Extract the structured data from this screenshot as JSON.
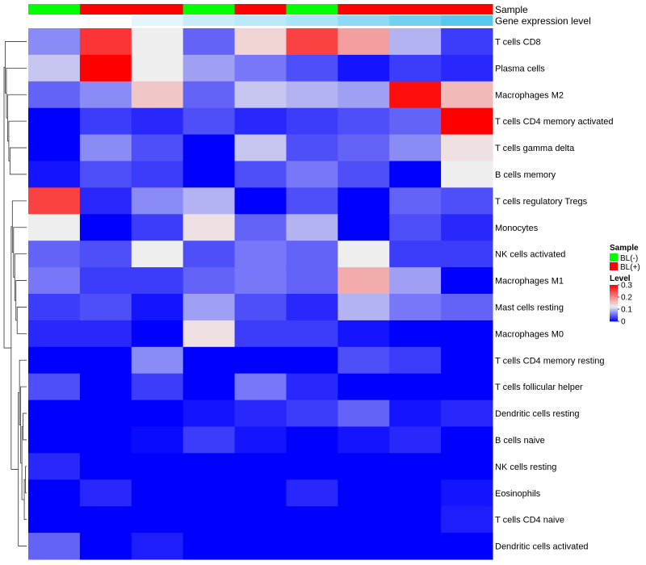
{
  "chart_data": {
    "type": "heatmap",
    "title": "",
    "annotation_tracks": [
      {
        "name": "Sample",
        "values": [
          "BL(-)",
          "BL(+)",
          "BL(+)",
          "BL(-)",
          "BL(+)",
          "BL(-)",
          "BL(+)",
          "BL(+)",
          "BL(+)"
        ]
      },
      {
        "name": "Gene expression level",
        "values": [
          0.0,
          0.0,
          0.02,
          0.04,
          0.05,
          0.06,
          0.08,
          0.1,
          0.12
        ]
      }
    ],
    "rows": [
      "T cells CD8",
      "Plasma cells",
      "Macrophages M2",
      "T cells CD4 memory activated",
      "T cells gamma delta",
      "B cells memory",
      "T cells regulatory  Tregs",
      "Monocytes",
      "NK cells activated",
      "Macrophages M1",
      "Mast cells resting",
      "Macrophages M0",
      "T cells CD4 memory resting",
      "T cells follicular helper",
      "Dendritic cells resting",
      "B cells naive",
      "NK cells resting",
      "Eosinophils",
      "T cells CD4 naive",
      "Dendritic cells activated"
    ],
    "values": [
      [
        0.07,
        0.26,
        0.12,
        0.05,
        0.14,
        0.25,
        0.18,
        0.09,
        0.03
      ],
      [
        0.1,
        0.3,
        0.12,
        0.08,
        0.06,
        0.04,
        0.01,
        0.03,
        0.02
      ],
      [
        0.05,
        0.07,
        0.15,
        0.05,
        0.1,
        0.09,
        0.08,
        0.29,
        0.16
      ],
      [
        0.0,
        0.03,
        0.02,
        0.04,
        0.02,
        0.03,
        0.04,
        0.05,
        0.3
      ],
      [
        0.0,
        0.07,
        0.04,
        0.0,
        0.1,
        0.04,
        0.05,
        0.07,
        0.13
      ],
      [
        0.01,
        0.04,
        0.03,
        0.0,
        0.04,
        0.06,
        0.04,
        0.0,
        0.12
      ],
      [
        0.25,
        0.02,
        0.07,
        0.09,
        0.0,
        0.04,
        0.0,
        0.05,
        0.04
      ],
      [
        0.12,
        0.0,
        0.03,
        0.13,
        0.05,
        0.09,
        0.0,
        0.04,
        0.02
      ],
      [
        0.05,
        0.04,
        0.12,
        0.04,
        0.06,
        0.05,
        0.12,
        0.03,
        0.03
      ],
      [
        0.06,
        0.03,
        0.03,
        0.05,
        0.06,
        0.05,
        0.17,
        0.08,
        0.0
      ],
      [
        0.03,
        0.04,
        0.01,
        0.08,
        0.04,
        0.02,
        0.09,
        0.06,
        0.05
      ],
      [
        0.02,
        0.02,
        0.0,
        0.13,
        0.03,
        0.03,
        0.01,
        0.0,
        0.0
      ],
      [
        0.0,
        0.0,
        0.07,
        0.0,
        0.0,
        0.0,
        0.04,
        0.03,
        0.0
      ],
      [
        0.04,
        0.0,
        0.03,
        0.0,
        0.06,
        0.02,
        0.0,
        0.0,
        0.0
      ],
      [
        0.0,
        0.0,
        0.0,
        0.01,
        0.02,
        0.03,
        0.05,
        0.01,
        0.02
      ],
      [
        0.0,
        0.0,
        0.005,
        0.03,
        0.01,
        0.0,
        0.01,
        0.02,
        0.0
      ],
      [
        0.02,
        0.0,
        0.0,
        0.0,
        0.0,
        0.0,
        0.0,
        0.0,
        0.0
      ],
      [
        0.0,
        0.02,
        0.0,
        0.0,
        0.0,
        0.02,
        0.0,
        0.0,
        0.01
      ],
      [
        0.0,
        0.0,
        0.0,
        0.0,
        0.0,
        0.0,
        0.0,
        0.0,
        0.015
      ],
      [
        0.05,
        0.0,
        0.015,
        0.0,
        0.0,
        0.0,
        0.0,
        0.0,
        0.0
      ]
    ],
    "color_scale": {
      "low": "#0000ff",
      "mid": "#eeeeee",
      "high": "#ff0000",
      "min": 0,
      "mid_value": 0.12,
      "max": 0.3
    },
    "legend": {
      "placement": "right",
      "sample_title": "Sample",
      "sample_entries": [
        {
          "label": "BL(-)",
          "color": "#00ff00"
        },
        {
          "label": "BL(+)",
          "color": "#ff0000"
        }
      ],
      "level_title": "Level",
      "level_ticks": [
        "0.3",
        "0.2",
        "0.1",
        "0"
      ],
      "level_tick_values": [
        0.3,
        0.2,
        0.1,
        0
      ]
    },
    "dendrogram": {
      "side": "left",
      "leaf_order": [
        0,
        1,
        2,
        3,
        4,
        5,
        6,
        7,
        8,
        9,
        10,
        11,
        12,
        13,
        14,
        15,
        16,
        17,
        18,
        19
      ],
      "merges": [
        [
          -17,
          -18
        ],
        [
          -19,
          1
        ],
        [
          -15,
          -16
        ],
        [
          2,
          3
        ],
        [
          -14,
          4
        ],
        [
          -13,
          5
        ],
        [
          -20,
          6
        ],
        [
          -11,
          -12
        ],
        [
          -10,
          8
        ],
        [
          -9,
          9
        ],
        [
          -8,
          10
        ],
        [
          -7,
          11
        ],
        [
          12,
          7
        ],
        [
          -5,
          -6
        ],
        [
          -4,
          14
        ],
        [
          -3,
          15
        ],
        [
          -2,
          16
        ],
        [
          -1,
          17
        ],
        [
          18,
          13
        ]
      ]
    },
    "gene_level_scale": {
      "low": "#ffffff",
      "high": "#56c8ee",
      "min": 0,
      "max": 0.12
    }
  }
}
